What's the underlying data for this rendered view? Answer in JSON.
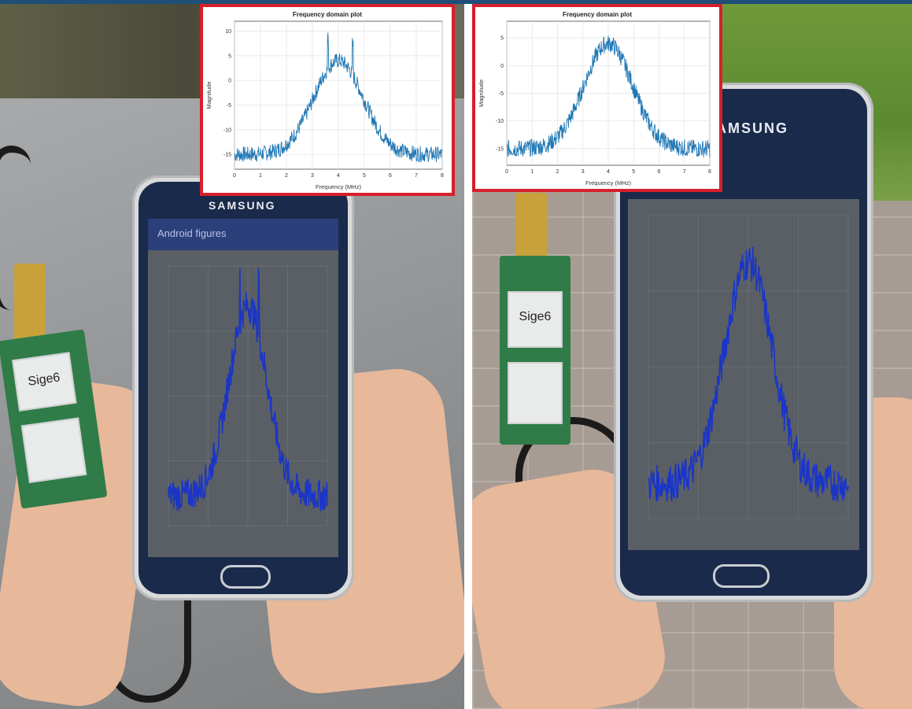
{
  "insets": [
    {
      "title": "Frequency domain plot",
      "xlabel": "Frequency (MHz)",
      "ylabel": "Magnitude",
      "xticks": [
        "0",
        "1",
        "2",
        "3",
        "4",
        "5",
        "6",
        "7",
        "8"
      ],
      "yticks": [
        "10",
        "5",
        "0",
        "-5",
        "-10",
        "-15"
      ]
    },
    {
      "title": "Frequency domain plot",
      "xlabel": "Frequency (MHz)",
      "ylabel": "Magnitude",
      "xticks": [
        "0",
        "1",
        "2",
        "3",
        "4",
        "5",
        "6",
        "7",
        "8"
      ],
      "yticks": [
        "5",
        "0",
        "-5",
        "-10",
        "-15"
      ]
    }
  ],
  "phone_left": {
    "brand": "SAMSUNG",
    "app_title": "Android figures"
  },
  "phone_right": {
    "brand": "AMSUNG"
  },
  "boards": [
    {
      "label": "Sige6"
    },
    {
      "label": "Sige6"
    }
  ],
  "colors": {
    "spectrum": "#1f77b4",
    "screen_trace": "#1a35c8",
    "inset_border": "#d6202a"
  }
}
